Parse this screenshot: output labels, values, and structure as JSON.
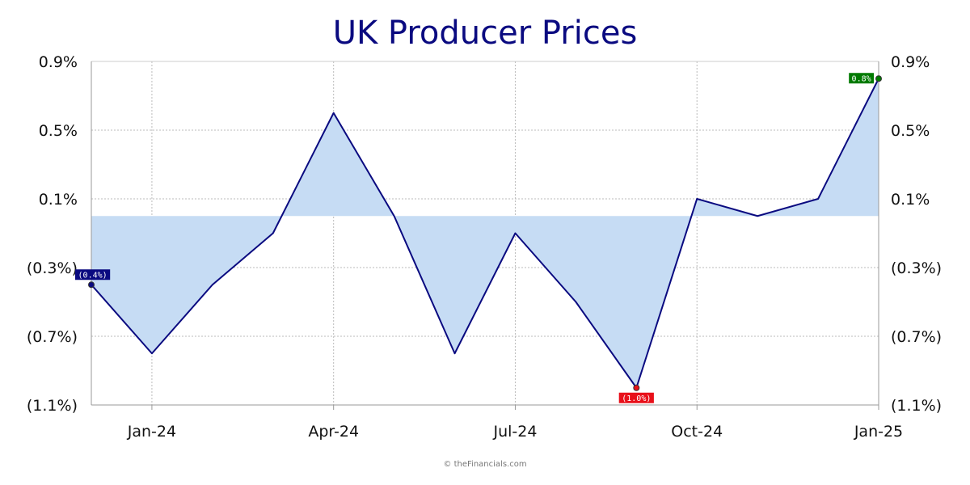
{
  "title": "UK Producer Prices",
  "credit": "© theFinancials.com",
  "chart_data": {
    "type": "area",
    "title": "UK Producer Prices",
    "xlabel": "",
    "ylabel": "",
    "x": [
      "Dec-23",
      "Jan-24",
      "Feb-24",
      "Mar-24",
      "Apr-24",
      "May-24",
      "Jun-24",
      "Jul-24",
      "Aug-24",
      "Sep-24",
      "Oct-24",
      "Nov-24",
      "Dec-24",
      "Jan-25"
    ],
    "x_ticks": [
      "Jan-24",
      "Apr-24",
      "Jul-24",
      "Oct-24",
      "Jan-25"
    ],
    "series": [
      {
        "values": [
          -0.4,
          -0.8,
          -0.4,
          -0.1,
          0.6,
          0.0,
          -0.8,
          -0.1,
          -0.5,
          -1.0,
          0.1,
          0.0,
          0.1,
          0.8
        ]
      }
    ],
    "baseline": 0.0,
    "ylim": [
      -1.1,
      0.9
    ],
    "y_ticks": [
      0.9,
      0.5,
      0.1,
      -0.3,
      -0.7,
      -1.1
    ],
    "y_tick_labels": [
      "0.9%",
      "0.5%",
      "0.1%",
      "(0.3%)",
      "(0.7%)",
      "(1.1%)"
    ],
    "annotations": [
      {
        "index": 0,
        "label": "(0.4%)",
        "color": "#0a0a80"
      },
      {
        "index": 9,
        "label": "(1.0%)",
        "color": "#e8101a"
      },
      {
        "index": 13,
        "label": "0.8%",
        "color": "#007a00"
      }
    ],
    "colors": {
      "line": "#0a0a80",
      "fill": "#c6dcf4",
      "grid": "#bbbbbb",
      "axis": "#999999"
    },
    "grid": true,
    "dual_y_axis": true
  }
}
